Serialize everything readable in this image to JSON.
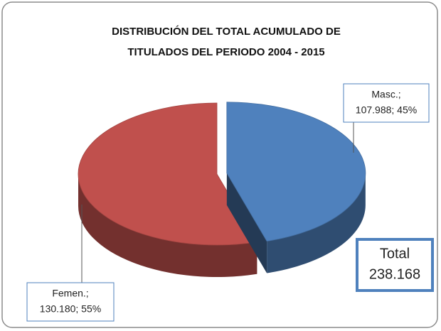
{
  "chart_data": {
    "type": "pie",
    "title": [
      "DISTRIBUCIÓN DEL TOTAL  ACUMULADO DE",
      "TITULADOS DEL PERIODO 2004 - 2015"
    ],
    "categories": [
      "Masc.;",
      "Femen.;"
    ],
    "values": [
      107988,
      130180
    ],
    "value_labels": [
      "107.988; 45%",
      "130.180; 55%"
    ],
    "colors": [
      "#4f81bd",
      "#c0504d"
    ],
    "annotation": [
      "Total",
      "238.168"
    ]
  }
}
